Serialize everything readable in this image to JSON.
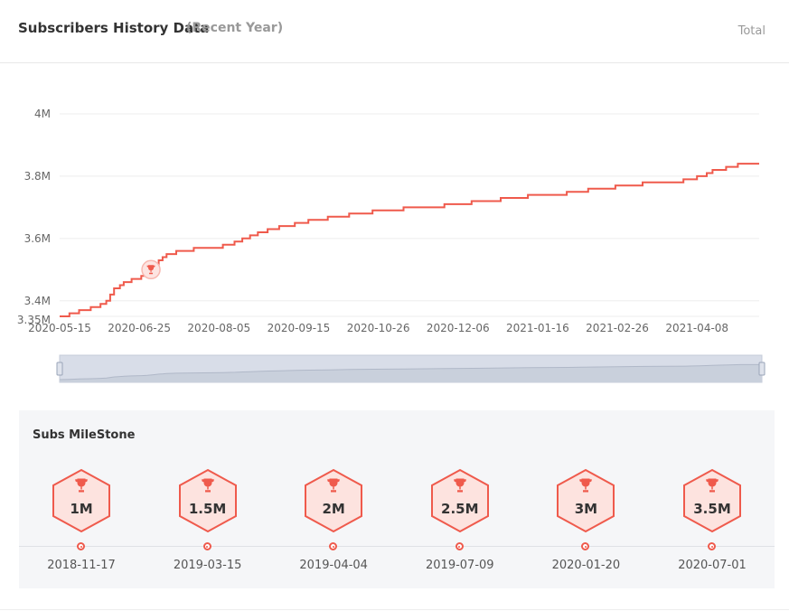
{
  "header": {
    "title": "Subscribers History Data",
    "subtitle": "(Recent Year)",
    "total_label": "Total"
  },
  "colors": {
    "line": "#ef5a4c",
    "grid": "#eeeeee",
    "slider_bg": "#d8dde8",
    "panel_bg": "#f5f6f8"
  },
  "chart_data": {
    "type": "line",
    "x_tick_labels": [
      "2020-05-15",
      "2020-06-25",
      "2020-08-05",
      "2020-09-15",
      "2020-10-26",
      "2020-12-06",
      "2021-01-16",
      "2021-02-26",
      "2021-04-08"
    ],
    "y_tick_labels": [
      "4M",
      "3.8M",
      "3.6M",
      "3.4M",
      "3.35M"
    ],
    "y_ticks": [
      4000000,
      3800000,
      3600000,
      3400000,
      3350000
    ],
    "xlim": [
      "2020-05-15",
      "2021-05-10"
    ],
    "ylim": [
      3350000,
      4000000
    ],
    "grid": true,
    "milestone_marker": {
      "date": "2020-07-01",
      "value": 3500000,
      "icon": "trophy-icon"
    },
    "series": [
      {
        "points": [
          [
            "2020-05-15",
            3350000
          ],
          [
            "2020-05-20",
            3360000
          ],
          [
            "2020-05-25",
            3370000
          ],
          [
            "2020-05-31",
            3380000
          ],
          [
            "2020-06-05",
            3390000
          ],
          [
            "2020-06-08",
            3400000
          ],
          [
            "2020-06-10",
            3420000
          ],
          [
            "2020-06-12",
            3440000
          ],
          [
            "2020-06-15",
            3450000
          ],
          [
            "2020-06-17",
            3460000
          ],
          [
            "2020-06-21",
            3470000
          ],
          [
            "2020-06-26",
            3480000
          ],
          [
            "2020-06-29",
            3490000
          ],
          [
            "2020-07-02",
            3510000
          ],
          [
            "2020-07-05",
            3530000
          ],
          [
            "2020-07-07",
            3540000
          ],
          [
            "2020-07-09",
            3550000
          ],
          [
            "2020-07-14",
            3560000
          ],
          [
            "2020-07-23",
            3570000
          ],
          [
            "2020-08-07",
            3580000
          ],
          [
            "2020-08-13",
            3590000
          ],
          [
            "2020-08-17",
            3600000
          ],
          [
            "2020-08-21",
            3610000
          ],
          [
            "2020-08-25",
            3620000
          ],
          [
            "2020-08-30",
            3630000
          ],
          [
            "2020-09-05",
            3640000
          ],
          [
            "2020-09-13",
            3650000
          ],
          [
            "2020-09-20",
            3660000
          ],
          [
            "2020-09-30",
            3670000
          ],
          [
            "2020-10-11",
            3680000
          ],
          [
            "2020-10-23",
            3690000
          ],
          [
            "2020-11-08",
            3700000
          ],
          [
            "2020-11-29",
            3710000
          ],
          [
            "2020-12-13",
            3720000
          ],
          [
            "2020-12-28",
            3730000
          ],
          [
            "2021-01-11",
            3740000
          ],
          [
            "2021-01-31",
            3750000
          ],
          [
            "2021-02-11",
            3760000
          ],
          [
            "2021-02-25",
            3770000
          ],
          [
            "2021-03-11",
            3780000
          ],
          [
            "2021-04-01",
            3790000
          ],
          [
            "2021-04-08",
            3800000
          ],
          [
            "2021-04-13",
            3810000
          ],
          [
            "2021-04-16",
            3820000
          ],
          [
            "2021-04-23",
            3830000
          ],
          [
            "2021-04-29",
            3840000
          ],
          [
            "2021-05-10",
            3840000
          ]
        ]
      }
    ]
  },
  "milestones": {
    "title": "Subs MileStone",
    "items": [
      {
        "label": "1M",
        "date": "2018-11-17"
      },
      {
        "label": "1.5M",
        "date": "2019-03-15"
      },
      {
        "label": "2M",
        "date": "2019-04-04"
      },
      {
        "label": "2.5M",
        "date": "2019-07-09"
      },
      {
        "label": "3M",
        "date": "2020-01-20"
      },
      {
        "label": "3.5M",
        "date": "2020-07-01"
      }
    ]
  }
}
